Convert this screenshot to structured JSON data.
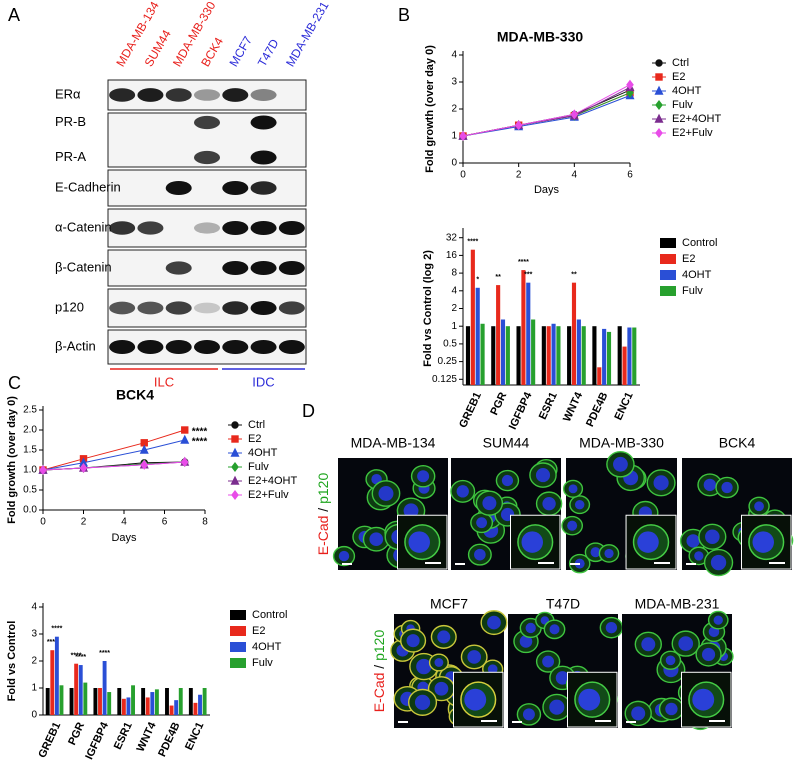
{
  "panel_labels": [
    "A",
    "B",
    "C",
    "D"
  ],
  "blot": {
    "cell_lines": [
      {
        "name": "MDA-MB-134",
        "color": "#e8201c"
      },
      {
        "name": "SUM44",
        "color": "#e8201c"
      },
      {
        "name": "MDA-MB-330",
        "color": "#e8201c"
      },
      {
        "name": "BCK4",
        "color": "#e8201c"
      },
      {
        "name": "MCF7",
        "color": "#2b2bd8"
      },
      {
        "name": "T47D",
        "color": "#2b2bd8"
      },
      {
        "name": "MDA-MB-231",
        "color": "#2b2bd8"
      }
    ],
    "rows": [
      "ERα",
      "PR-B",
      "PR-A",
      "E-Cadherin",
      "α-Catenin",
      "β-Catenin",
      "p120",
      "β-Actin"
    ],
    "groups": [
      {
        "name": "ILC",
        "color": "#e8201c"
      },
      {
        "name": "IDC",
        "color": "#2b2bd8"
      }
    ]
  },
  "chart_data": [
    {
      "type": "line",
      "title": "MDA-MB-330",
      "x_label": "Days",
      "y_label": "Fold growth (over day 0)",
      "x": [
        0,
        2,
        4,
        6
      ],
      "xlim": [
        0,
        6
      ],
      "xticks": [
        0,
        2,
        4,
        6
      ],
      "ylim": [
        0,
        4
      ],
      "yticks": [
        0,
        1,
        2,
        3,
        4
      ],
      "legend": "right",
      "series": [
        {
          "name": "Ctrl",
          "color": "#111111",
          "marker": "circle",
          "values": [
            1,
            1.4,
            1.8,
            2.7
          ]
        },
        {
          "name": "E2",
          "color": "#e8291c",
          "marker": "square",
          "values": [
            1,
            1.4,
            1.75,
            2.6
          ]
        },
        {
          "name": "4OHT",
          "color": "#2a4fd6",
          "marker": "triangle",
          "values": [
            1,
            1.35,
            1.7,
            2.5
          ]
        },
        {
          "name": "Fulv",
          "color": "#27a02e",
          "marker": "diamond",
          "values": [
            1,
            1.4,
            1.75,
            2.6
          ]
        },
        {
          "name": "E2+4OHT",
          "color": "#7b2d8e",
          "marker": "triangle",
          "values": [
            1,
            1.4,
            1.75,
            2.8
          ]
        },
        {
          "name": "E2+Fulv",
          "color": "#e84ce8",
          "marker": "diamond",
          "values": [
            1,
            1.4,
            1.8,
            2.9
          ]
        }
      ]
    },
    {
      "type": "bar",
      "y_label": "Fold vs Control (log 2)",
      "log_scale": true,
      "categories": [
        "GREB1",
        "PGR",
        "IGFBP4",
        "ESR1",
        "WNT4",
        "PDE4B",
        "ENC1"
      ],
      "ylim": [
        0.1,
        40
      ],
      "yticks": [
        0.125,
        0.25,
        0.5,
        1,
        2,
        4,
        8,
        16,
        32
      ],
      "legend": "right",
      "series": [
        {
          "name": "Control",
          "color": "#000000",
          "values": [
            1,
            1,
            1,
            1,
            1,
            1,
            1
          ]
        },
        {
          "name": "E2",
          "color": "#e8291c",
          "values": [
            20,
            5,
            9,
            1,
            5.5,
            0.2,
            0.45
          ],
          "significance": [
            "****",
            "**",
            "****",
            null,
            "**",
            null,
            null
          ]
        },
        {
          "name": "4OHT",
          "color": "#2a4fd6",
          "values": [
            4.5,
            1.3,
            5.5,
            1.1,
            1.3,
            0.9,
            0.95
          ],
          "significance": [
            "*",
            null,
            "***",
            null,
            null,
            null,
            null
          ]
        },
        {
          "name": "Fulv",
          "color": "#27a02e",
          "values": [
            1.1,
            1,
            1.3,
            1,
            1,
            0.8,
            0.95
          ]
        }
      ]
    },
    {
      "type": "line",
      "title": "BCK4",
      "x_label": "Days",
      "y_label": "Fold growth (over day 0)",
      "x": [
        0,
        2,
        5,
        7
      ],
      "xlim": [
        0,
        8
      ],
      "xticks": [
        0,
        2,
        4,
        6,
        8
      ],
      "ylim": [
        0,
        2.5
      ],
      "yticks": [
        {
          "value": 0,
          "label": "0.0"
        },
        0.5,
        {
          "value": 1,
          "label": "1.0"
        },
        1.5,
        {
          "value": 2,
          "label": "2.0"
        },
        2.5
      ],
      "legend": "right",
      "series": [
        {
          "name": "Ctrl",
          "color": "#111111",
          "marker": "circle",
          "values": [
            1,
            1.05,
            1.18,
            1.2
          ]
        },
        {
          "name": "E2",
          "color": "#e8291c",
          "marker": "square",
          "values": [
            1,
            1.28,
            1.68,
            2.0
          ],
          "significance": [
            null,
            null,
            null,
            "****"
          ]
        },
        {
          "name": "4OHT",
          "color": "#2a4fd6",
          "marker": "triangle",
          "values": [
            1,
            1.18,
            1.5,
            1.75
          ],
          "significance": [
            null,
            null,
            null,
            "****"
          ]
        },
        {
          "name": "Fulv",
          "color": "#27a02e",
          "marker": "diamond",
          "values": [
            1,
            1.05,
            1.15,
            1.2
          ]
        },
        {
          "name": "E2+4OHT",
          "color": "#7b2d8e",
          "marker": "triangle",
          "values": [
            1,
            1.05,
            1.13,
            1.2
          ]
        },
        {
          "name": "E2+Fulv",
          "color": "#e84ce8",
          "marker": "diamond",
          "values": [
            1,
            1.05,
            1.13,
            1.2
          ]
        }
      ]
    },
    {
      "type": "bar",
      "y_label": "Fold vs Control",
      "categories": [
        "GREB1",
        "PGR",
        "IGFBP4",
        "ESR1",
        "WNT4",
        "PDE4B",
        "ENC1"
      ],
      "ylim": [
        0,
        4
      ],
      "yticks": [
        0,
        1,
        2,
        3,
        4
      ],
      "legend": "right",
      "series": [
        {
          "name": "Control",
          "color": "#000000",
          "values": [
            1,
            1,
            1,
            1,
            1,
            1,
            1
          ]
        },
        {
          "name": "E2",
          "color": "#e8291c",
          "values": [
            2.4,
            1.9,
            1.0,
            0.6,
            0.65,
            0.35,
            0.45
          ],
          "significance": [
            "****",
            "****",
            null,
            null,
            null,
            null,
            null
          ]
        },
        {
          "name": "4OHT",
          "color": "#2a4fd6",
          "values": [
            2.9,
            1.85,
            2.0,
            0.65,
            0.85,
            0.55,
            0.75
          ],
          "significance": [
            "****",
            "****",
            "****",
            null,
            null,
            null,
            null
          ]
        },
        {
          "name": "Fulv",
          "color": "#27a02e",
          "values": [
            1.1,
            1.2,
            0.85,
            1.1,
            0.95,
            1.0,
            1.0
          ]
        }
      ]
    }
  ],
  "microscopy": {
    "stain_label": [
      {
        "text": "E-Cad",
        "color": "#e8201c"
      },
      {
        "text": " / ",
        "color": "#111111"
      },
      {
        "text": "p120",
        "color": "#1ea51e"
      }
    ],
    "top_row": [
      "MDA-MB-134",
      "SUM44",
      "MDA-MB-330",
      "BCK4"
    ],
    "bottom_row": [
      "MCF7",
      "T47D",
      "MDA-MB-231"
    ]
  }
}
